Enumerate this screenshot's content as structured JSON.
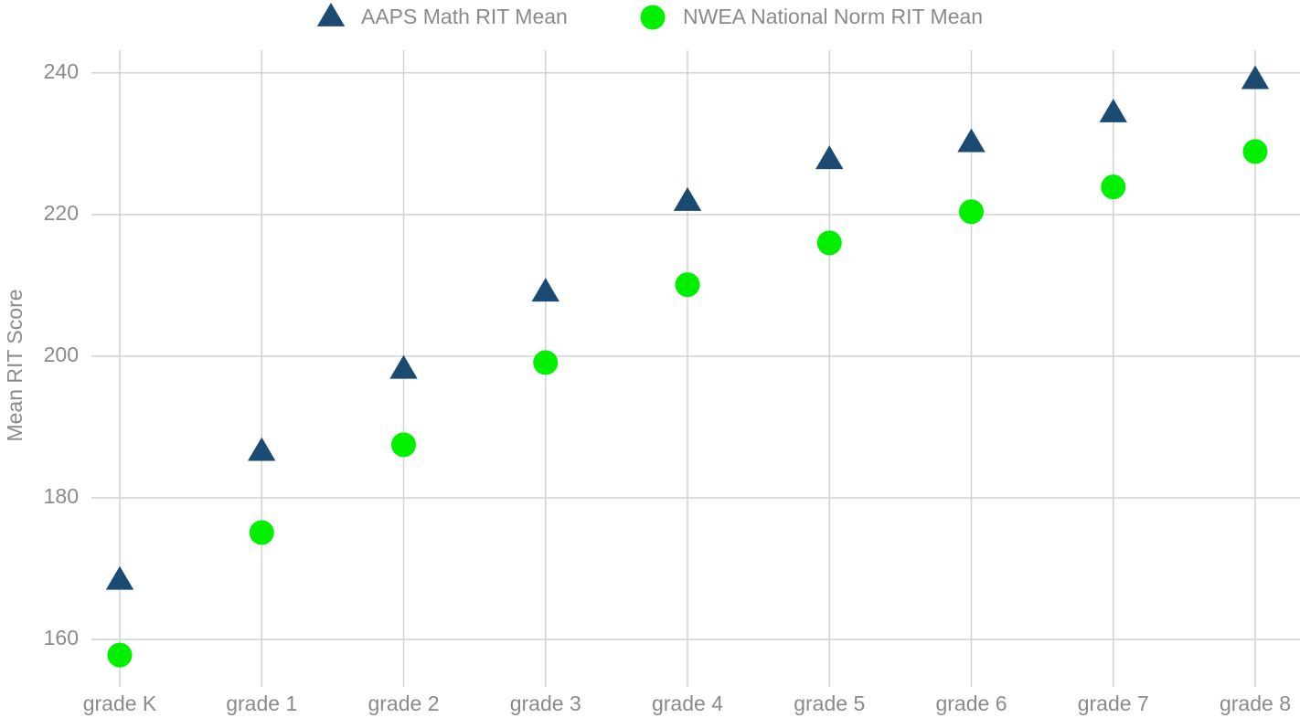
{
  "chart_data": {
    "type": "scatter",
    "y_label": "Mean RIT Score",
    "categories": [
      "grade K",
      "grade 1",
      "grade 2",
      "grade 3",
      "grade 4",
      "grade 5",
      "grade 6",
      "grade 7",
      "grade 8"
    ],
    "series": [
      {
        "name": "AAPS Math RIT Mean",
        "color": "#1b4a73",
        "marker": "triangle",
        "values": [
          168.3,
          186.5,
          198.1,
          209.0,
          221.8,
          227.7,
          230.1,
          234.3,
          239.0
        ]
      },
      {
        "name": "NWEA National Norm RIT Mean",
        "color": "#00f000",
        "marker": "circle",
        "values": [
          157.8,
          175.1,
          187.5,
          199.1,
          210.1,
          216.0,
          220.4,
          223.9,
          228.9
        ]
      }
    ],
    "ylim": [
      153.3,
      243.2
    ],
    "yticks": [
      160,
      180,
      200,
      220,
      240
    ],
    "grid": true,
    "legend": "top"
  }
}
